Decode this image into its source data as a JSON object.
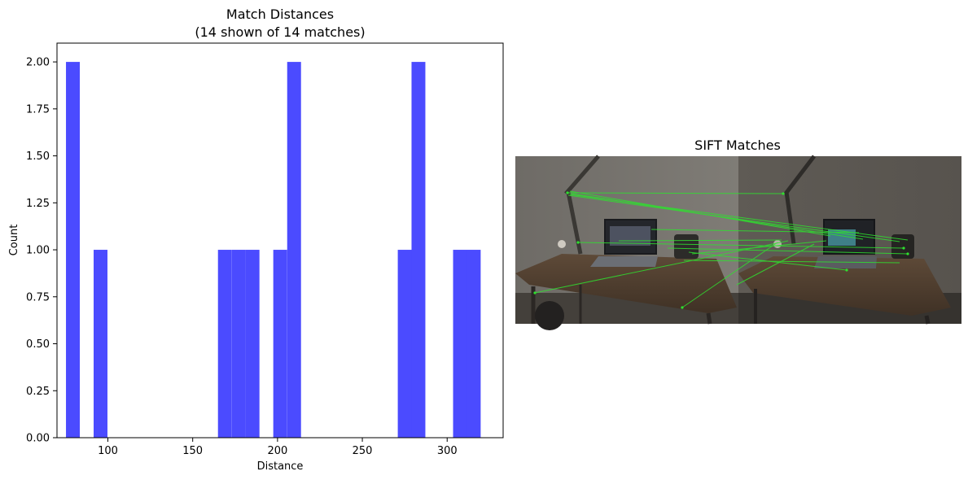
{
  "chart_data": [
    {
      "type": "bar",
      "title": "Match Distances",
      "subtitle": "(14 shown of 14 matches)",
      "xlabel": "Distance",
      "ylabel": "Count",
      "xlim": [
        70,
        333
      ],
      "ylim": [
        0,
        2.1
      ],
      "xticks": [
        100,
        150,
        200,
        250,
        300
      ],
      "yticks": [
        0.0,
        0.25,
        0.5,
        0.75,
        1.0,
        1.25,
        1.5,
        1.75,
        2.0
      ],
      "bin_width": 8.15,
      "bins": [
        {
          "start": 75.3,
          "count": 2
        },
        {
          "start": 91.6,
          "count": 1
        },
        {
          "start": 164.9,
          "count": 1
        },
        {
          "start": 173.1,
          "count": 1
        },
        {
          "start": 181.2,
          "count": 1
        },
        {
          "start": 197.5,
          "count": 1
        },
        {
          "start": 205.7,
          "count": 2
        },
        {
          "start": 270.9,
          "count": 1
        },
        {
          "start": 279.0,
          "count": 2
        },
        {
          "start": 303.5,
          "count": 1
        },
        {
          "start": 311.6,
          "count": 1
        }
      ],
      "color": "#4b4bff",
      "grid": false
    },
    {
      "type": "image",
      "title": "SIFT Matches",
      "line_color": "#2fe02f"
    }
  ]
}
